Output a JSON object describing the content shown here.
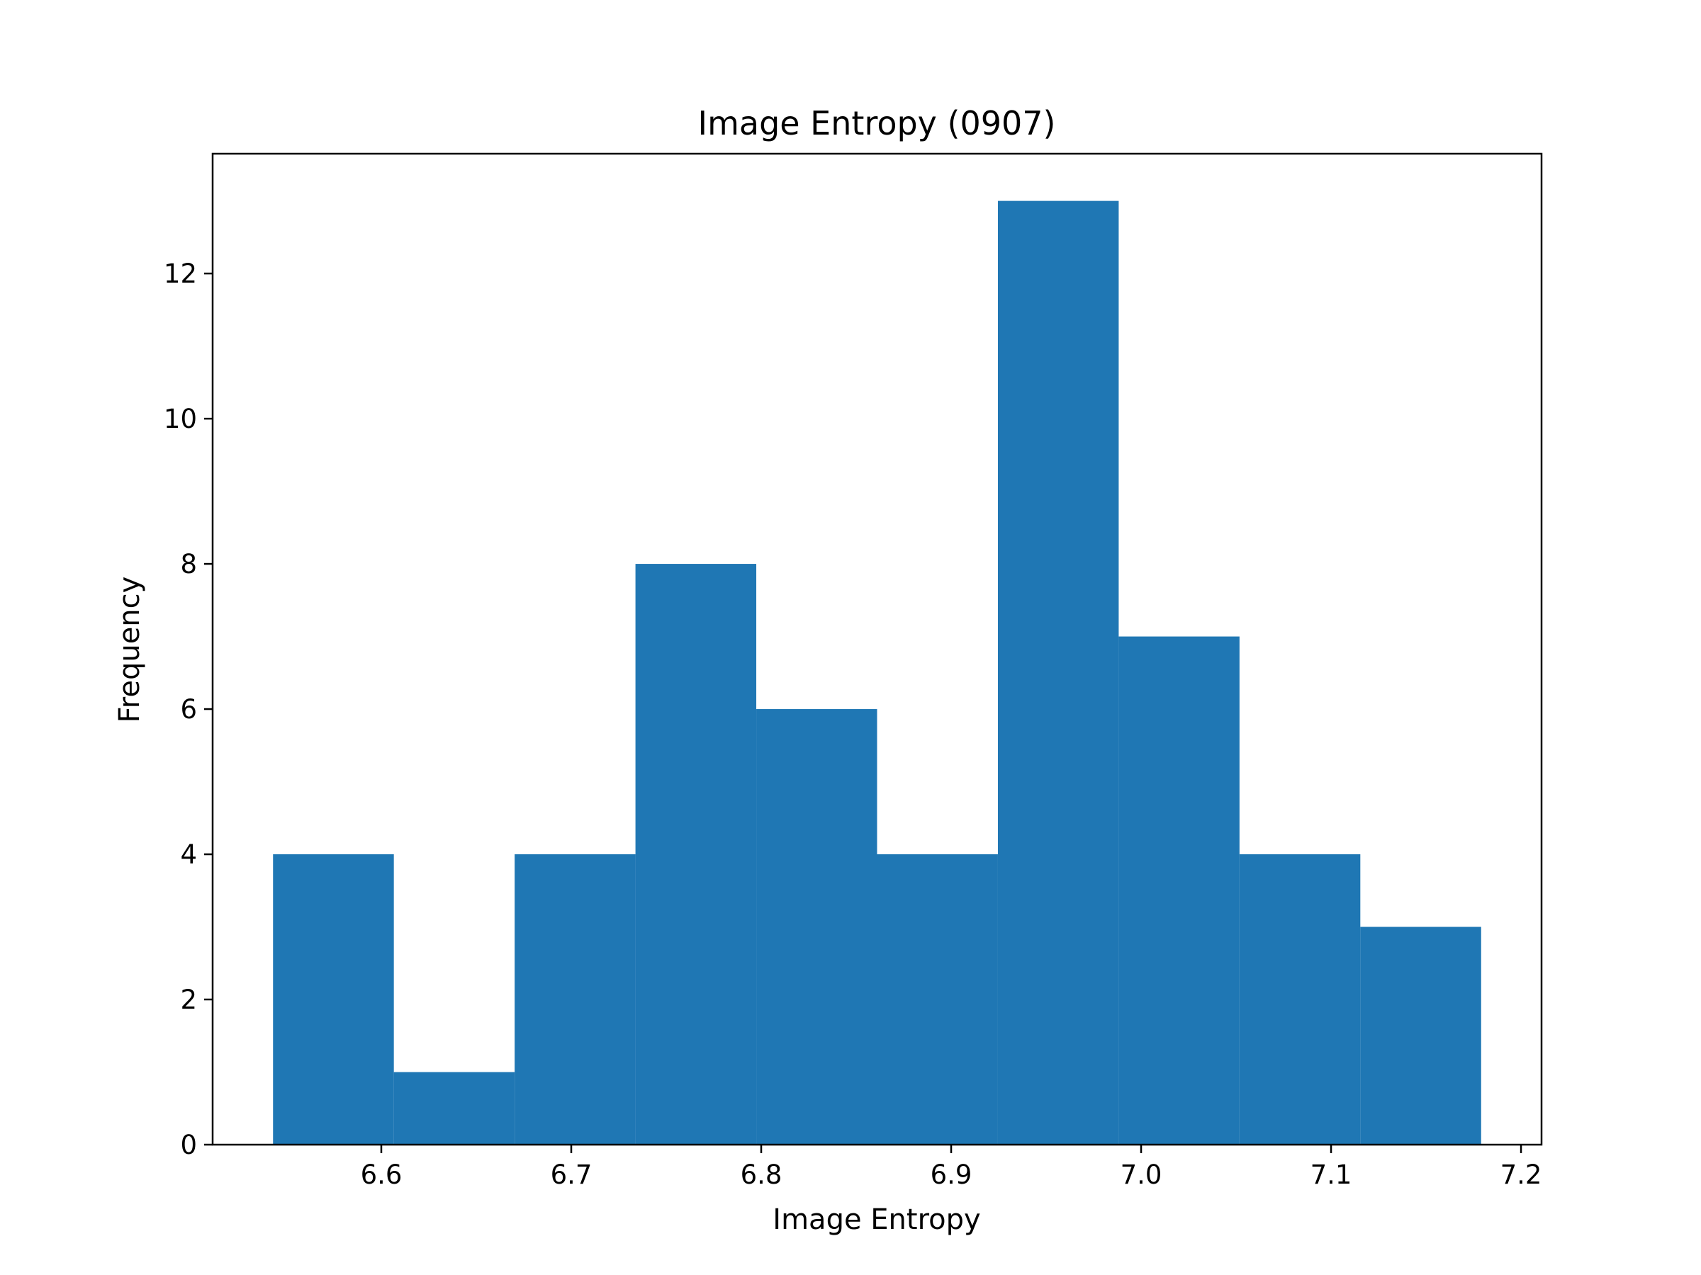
{
  "chart_data": {
    "type": "bar",
    "title": "Image Entropy (0907)",
    "xlabel": "Image Entropy",
    "ylabel": "Frequency",
    "bin_edges": [
      6.543,
      6.6066,
      6.6702,
      6.7338,
      6.7974,
      6.861,
      6.9246,
      6.9882,
      7.0518,
      7.1154,
      7.179
    ],
    "values": [
      4,
      1,
      4,
      8,
      6,
      4,
      13,
      7,
      4,
      3
    ],
    "xlim": [
      6.5112,
      7.2108
    ],
    "ylim": [
      0,
      13.65
    ],
    "xticks": [
      6.6,
      6.7,
      6.8,
      6.9,
      7.0,
      7.1,
      7.2
    ],
    "xtick_labels": [
      "6.6",
      "6.7",
      "6.8",
      "6.9",
      "7.0",
      "7.1",
      "7.2"
    ],
    "yticks": [
      0,
      2,
      4,
      6,
      8,
      10,
      12
    ],
    "ytick_labels": [
      "0",
      "2",
      "4",
      "6",
      "8",
      "10",
      "12"
    ],
    "bar_color": "#1f77b4",
    "grid": false
  }
}
